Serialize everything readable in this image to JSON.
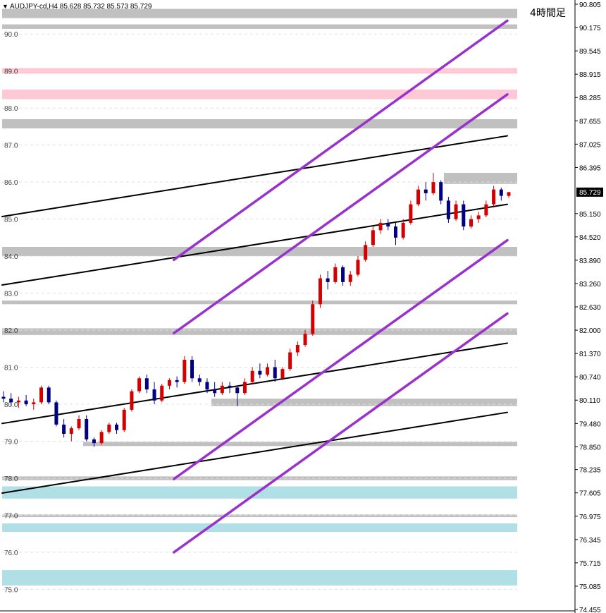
{
  "header": {
    "symbol_line": "AUDJPY-cd,H4  85.628 85.732 85.573 85.729",
    "timeframe_label": "4時間足"
  },
  "chart_data": {
    "type": "candlestick",
    "symbol": "AUDJPY-cd",
    "timeframe": "H4",
    "ohlc_last": {
      "open": 85.628,
      "high": 85.732,
      "low": 85.573,
      "close": 85.729
    },
    "current_price_label": "85.729",
    "current_price": 85.729,
    "ylim": [
      74.455,
      90.805
    ],
    "right_axis_ticks": [
      "90.805",
      "90.175",
      "89.545",
      "88.915",
      "88.285",
      "87.655",
      "87.025",
      "86.395",
      "85.150",
      "84.520",
      "83.890",
      "83.260",
      "82.630",
      "82.000",
      "81.370",
      "80.740",
      "80.110",
      "79.480",
      "78.850",
      "78.235",
      "77.605",
      "76.975",
      "76.345",
      "75.715",
      "75.085",
      "74.455"
    ],
    "left_level_labels": [
      "90.0",
      "89.0",
      "88.0",
      "87.0",
      "86.0",
      "85.0",
      "84.0",
      "83.0",
      "82.0",
      "81.0",
      "80.0",
      "79.0",
      "78.0",
      "77.0",
      "76.0",
      "75.0"
    ],
    "zones": [
      {
        "color": "#c0c0c0",
        "from": 90.43,
        "to": 90.68
      },
      {
        "color": "#c0c0c0",
        "from": 90.14,
        "to": 90.26
      },
      {
        "color": "#ffc8d4",
        "from": 88.93,
        "to": 89.08
      },
      {
        "color": "#ffc8d4",
        "from": 88.24,
        "to": 88.5
      },
      {
        "color": "#c0c0c0",
        "from": 87.45,
        "to": 87.7
      },
      {
        "color": "#c0c0c0",
        "from": 85.95,
        "to": 86.25
      },
      {
        "color": "#c0c0c0",
        "from": 84.0,
        "to": 84.25
      },
      {
        "color": "#c0c0c0",
        "from": 82.7,
        "to": 82.8
      },
      {
        "color": "#c0c0c0",
        "from": 81.87,
        "to": 82.05
      },
      {
        "color": "#c0c0c0",
        "from": 79.95,
        "to": 80.15
      },
      {
        "color": "#c0c0c0",
        "from": 78.87,
        "to": 78.98
      },
      {
        "color": "#c0c0c0",
        "from": 77.95,
        "to": 78.05
      },
      {
        "color": "#b0e0e6",
        "from": 77.45,
        "to": 77.78
      },
      {
        "color": "#c0c0c0",
        "from": 76.95,
        "to": 77.02
      },
      {
        "color": "#b0e0e6",
        "from": 76.55,
        "to": 76.78
      },
      {
        "color": "#b0e0e6",
        "from": 75.1,
        "to": 75.52
      }
    ],
    "trendlines": [
      {
        "color": "#000000",
        "points": [
          [
            0,
            85.07
          ],
          [
            100,
            87.25
          ]
        ]
      },
      {
        "color": "#000000",
        "points": [
          [
            0,
            83.22
          ],
          [
            100,
            85.4
          ]
        ]
      },
      {
        "color": "#000000",
        "points": [
          [
            0,
            79.48
          ],
          [
            100,
            81.65
          ]
        ]
      },
      {
        "color": "#000000",
        "points": [
          [
            0,
            77.6
          ],
          [
            100,
            79.78
          ]
        ]
      },
      {
        "color": "#9932cc",
        "points": [
          [
            34,
            83.9
          ],
          [
            100,
            90.36
          ]
        ]
      },
      {
        "color": "#9932cc",
        "points": [
          [
            34,
            81.92
          ],
          [
            100,
            88.37
          ]
        ]
      },
      {
        "color": "#9932cc",
        "points": [
          [
            34,
            77.98
          ],
          [
            100,
            84.43
          ]
        ]
      },
      {
        "color": "#9932cc",
        "points": [
          [
            34,
            76.0
          ],
          [
            100,
            82.45
          ]
        ]
      }
    ],
    "candles": [
      [
        80.2,
        80.35,
        80.05,
        80.15
      ],
      [
        80.15,
        80.3,
        79.95,
        80.05
      ],
      [
        80.05,
        80.2,
        79.9,
        80.1
      ],
      [
        80.1,
        80.25,
        79.95,
        80.0
      ],
      [
        80.0,
        80.15,
        79.85,
        80.05
      ],
      [
        80.05,
        80.5,
        80.0,
        80.45
      ],
      [
        80.45,
        80.5,
        80.0,
        80.05
      ],
      [
        80.05,
        80.1,
        79.4,
        79.45
      ],
      [
        79.45,
        79.6,
        79.1,
        79.2
      ],
      [
        79.2,
        79.4,
        79.0,
        79.35
      ],
      [
        79.35,
        79.7,
        79.3,
        79.6
      ],
      [
        79.6,
        79.7,
        79.0,
        79.05
      ],
      [
        79.05,
        79.1,
        78.85,
        78.95
      ],
      [
        78.95,
        79.3,
        78.9,
        79.25
      ],
      [
        79.25,
        79.5,
        79.2,
        79.45
      ],
      [
        79.45,
        79.5,
        79.2,
        79.3
      ],
      [
        79.3,
        79.9,
        79.25,
        79.85
      ],
      [
        79.85,
        80.4,
        79.8,
        80.35
      ],
      [
        80.35,
        80.75,
        80.3,
        80.7
      ],
      [
        80.7,
        80.8,
        80.3,
        80.4
      ],
      [
        80.4,
        80.6,
        80.0,
        80.1
      ],
      [
        80.1,
        80.55,
        80.05,
        80.5
      ],
      [
        80.5,
        80.7,
        80.4,
        80.65
      ],
      [
        80.65,
        80.75,
        80.45,
        80.6
      ],
      [
        80.6,
        81.3,
        80.55,
        81.2
      ],
      [
        81.2,
        81.3,
        80.6,
        80.7
      ],
      [
        80.7,
        80.8,
        80.5,
        80.6
      ],
      [
        80.6,
        80.7,
        80.3,
        80.4
      ],
      [
        80.4,
        80.6,
        80.2,
        80.3
      ],
      [
        80.3,
        80.6,
        80.25,
        80.5
      ],
      [
        80.5,
        80.6,
        80.3,
        80.45
      ],
      [
        80.45,
        80.5,
        79.95,
        80.3
      ],
      [
        80.3,
        80.7,
        80.25,
        80.6
      ],
      [
        80.6,
        81.0,
        80.55,
        80.9
      ],
      [
        80.9,
        81.1,
        80.7,
        80.8
      ],
      [
        80.8,
        81.1,
        80.75,
        81.0
      ],
      [
        81.0,
        81.2,
        80.6,
        80.7
      ],
      [
        80.7,
        81.0,
        80.65,
        80.95
      ],
      [
        80.95,
        81.5,
        80.9,
        81.4
      ],
      [
        81.4,
        81.7,
        81.3,
        81.6
      ],
      [
        81.6,
        82.0,
        81.55,
        81.9
      ],
      [
        81.9,
        82.8,
        81.85,
        82.7
      ],
      [
        82.7,
        83.5,
        82.6,
        83.4
      ],
      [
        83.4,
        83.6,
        83.1,
        83.3
      ],
      [
        83.3,
        83.8,
        83.25,
        83.7
      ],
      [
        83.7,
        83.75,
        83.2,
        83.3
      ],
      [
        83.3,
        83.6,
        83.2,
        83.5
      ],
      [
        83.5,
        84.0,
        83.45,
        83.9
      ],
      [
        83.9,
        84.4,
        83.85,
        84.3
      ],
      [
        84.3,
        84.8,
        84.25,
        84.7
      ],
      [
        84.7,
        85.0,
        84.6,
        84.9
      ],
      [
        84.9,
        85.0,
        84.7,
        84.8
      ],
      [
        84.8,
        84.9,
        84.3,
        84.5
      ],
      [
        84.5,
        85.0,
        84.45,
        84.9
      ],
      [
        84.9,
        85.5,
        84.85,
        85.4
      ],
      [
        85.4,
        85.9,
        85.35,
        85.8
      ],
      [
        85.8,
        86.0,
        85.5,
        85.7
      ],
      [
        85.7,
        86.25,
        85.65,
        86.0
      ],
      [
        86.0,
        86.05,
        85.4,
        85.5
      ],
      [
        85.5,
        85.6,
        84.9,
        85.0
      ],
      [
        85.0,
        85.5,
        84.95,
        85.4
      ],
      [
        85.4,
        85.5,
        84.7,
        84.8
      ],
      [
        84.8,
        85.1,
        84.75,
        85.0
      ],
      [
        85.0,
        85.2,
        84.9,
        85.1
      ],
      [
        85.1,
        85.5,
        85.05,
        85.4
      ],
      [
        85.4,
        85.9,
        85.35,
        85.8
      ],
      [
        85.8,
        85.85,
        85.5,
        85.63
      ],
      [
        85.628,
        85.732,
        85.573,
        85.729
      ]
    ],
    "colors": {
      "bull": "#d20000",
      "bear": "#000080",
      "trend_black": "#000000",
      "channel_purple": "#9932cc",
      "price_tag": "#000000"
    }
  }
}
